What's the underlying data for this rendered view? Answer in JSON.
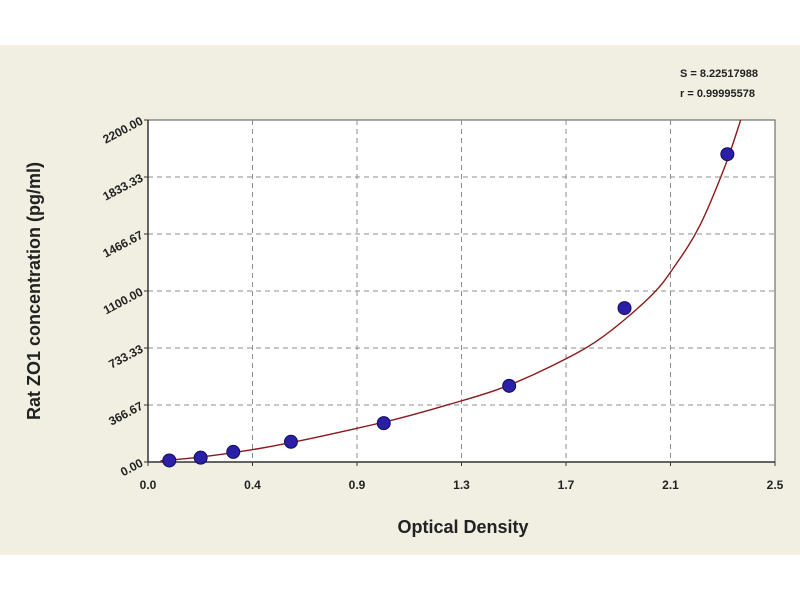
{
  "chart_data": {
    "type": "scatter",
    "title": "",
    "xlabel": "Optical Density",
    "ylabel": "Rat ZO1 concentration (pg/ml)",
    "xlim": [
      0.0,
      2.5
    ],
    "ylim": [
      0,
      2200
    ],
    "x_ticks": [
      "0.0",
      "0.4",
      "0.9",
      "1.3",
      "1.7",
      "2.1",
      "2.5"
    ],
    "y_ticks": [
      "0.00",
      "366.67",
      "733.33",
      "1100.00",
      "1466.67",
      "1833.33",
      "2200.00"
    ],
    "grid": true,
    "points": {
      "x": [
        0.085,
        0.21,
        0.34,
        0.57,
        0.94,
        1.44,
        1.9,
        2.31
      ],
      "y": [
        10,
        28,
        65,
        130,
        250,
        490,
        990,
        1980
      ]
    },
    "fit_curve": {
      "x": [
        0.05,
        0.2,
        0.4,
        0.6,
        0.8,
        1.0,
        1.2,
        1.4,
        1.6,
        1.8,
        2.0,
        2.1,
        2.2,
        2.3,
        2.38
      ],
      "y": [
        8,
        30,
        75,
        135,
        205,
        280,
        370,
        470,
        610,
        790,
        1060,
        1260,
        1520,
        1900,
        2280
      ]
    },
    "stats": {
      "s": "S = 8.22517988",
      "r": "r = 0.99995578"
    },
    "colors": {
      "background": "#f0efe1",
      "plot_area": "#ffffff",
      "grid": "#8c8c8c",
      "curve": "#8b1a1a",
      "marker_fill": "#2b1fa8",
      "marker_edge": "#120b5c"
    }
  }
}
